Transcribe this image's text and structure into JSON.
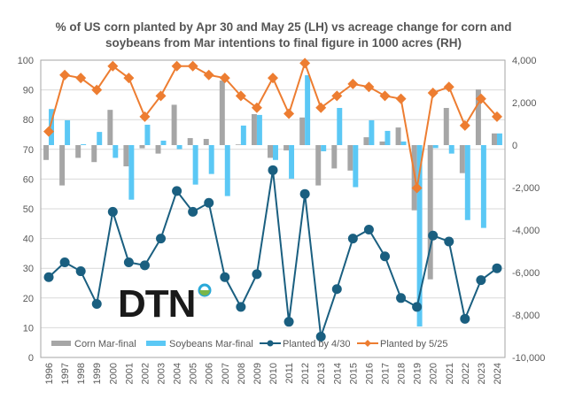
{
  "chart_data": {
    "type": "bar+line",
    "title_line1": "% of US corn planted by Apr 30 and May 25 (LH) vs acreage change for corn and",
    "title_line2": "soybeans from Mar intentions to final figure in 1000 acres (RH)",
    "categories": [
      "1996",
      "1997",
      "1998",
      "1999",
      "2000",
      "2001",
      "2002",
      "2003",
      "2004",
      "2005",
      "2006",
      "2007",
      "2008",
      "2009",
      "2010",
      "2011",
      "2012",
      "2013",
      "2014",
      "2015",
      "2016",
      "2017",
      "2018",
      "2019",
      "2020",
      "2021",
      "2022",
      "2023",
      "2024"
    ],
    "y_left": {
      "range": [
        0,
        100
      ],
      "ticks": [
        "0",
        "10",
        "20",
        "30",
        "40",
        "50",
        "60",
        "70",
        "80",
        "90",
        "100"
      ]
    },
    "y_right": {
      "range": [
        -10000,
        4000
      ],
      "ticks": [
        "-10,000",
        "-8,000",
        "-6,000",
        "-4,000",
        "-2,000",
        "0",
        "2,000",
        "4,000"
      ]
    },
    "grid": true,
    "legend_position": "bottom",
    "series": [
      {
        "name": "Corn Mar-final",
        "kind": "bar",
        "axis": "right",
        "color": "#a6a6a6",
        "values": [
          -700,
          -1900,
          -600,
          -800,
          1660,
          -1000,
          -150,
          -400,
          1900,
          330,
          290,
          3040,
          30,
          1460,
          -600,
          -250,
          1300,
          -1900,
          -1100,
          -1200,
          370,
          170,
          830,
          -3070,
          -6320,
          1750,
          -1320,
          2620,
          550
        ]
      },
      {
        "name": "Soybeans Mar-final",
        "kind": "bar",
        "axis": "right",
        "color": "#5bc8f5",
        "values": [
          1700,
          1170,
          40,
          620,
          -600,
          -2570,
          960,
          210,
          -190,
          -1860,
          -1360,
          -2400,
          920,
          1420,
          -700,
          -1580,
          3290,
          -290,
          1750,
          -1980,
          1170,
          670,
          170,
          -8540,
          -140,
          -400,
          -3530,
          -3900,
          550
        ]
      },
      {
        "name": "Planted by 4/30",
        "kind": "line",
        "axis": "left",
        "color": "#1a5f80",
        "values": [
          27,
          32,
          29,
          18,
          49,
          32,
          31,
          40,
          56,
          49,
          52,
          27,
          17,
          28,
          63,
          12,
          55,
          7,
          23,
          40,
          43,
          34,
          20,
          17,
          41,
          39,
          13,
          26,
          30
        ]
      },
      {
        "name": "Planted by 5/25",
        "kind": "line",
        "axis": "left",
        "color": "#ed7d31",
        "values": [
          76,
          95,
          94,
          90,
          98,
          94,
          81,
          88,
          98,
          98,
          95,
          94,
          88,
          84,
          94,
          82,
          99,
          84,
          88,
          92,
          91,
          88,
          87,
          57,
          89,
          91,
          78,
          87,
          81
        ]
      }
    ]
  },
  "logo": {
    "text": "DTN"
  }
}
